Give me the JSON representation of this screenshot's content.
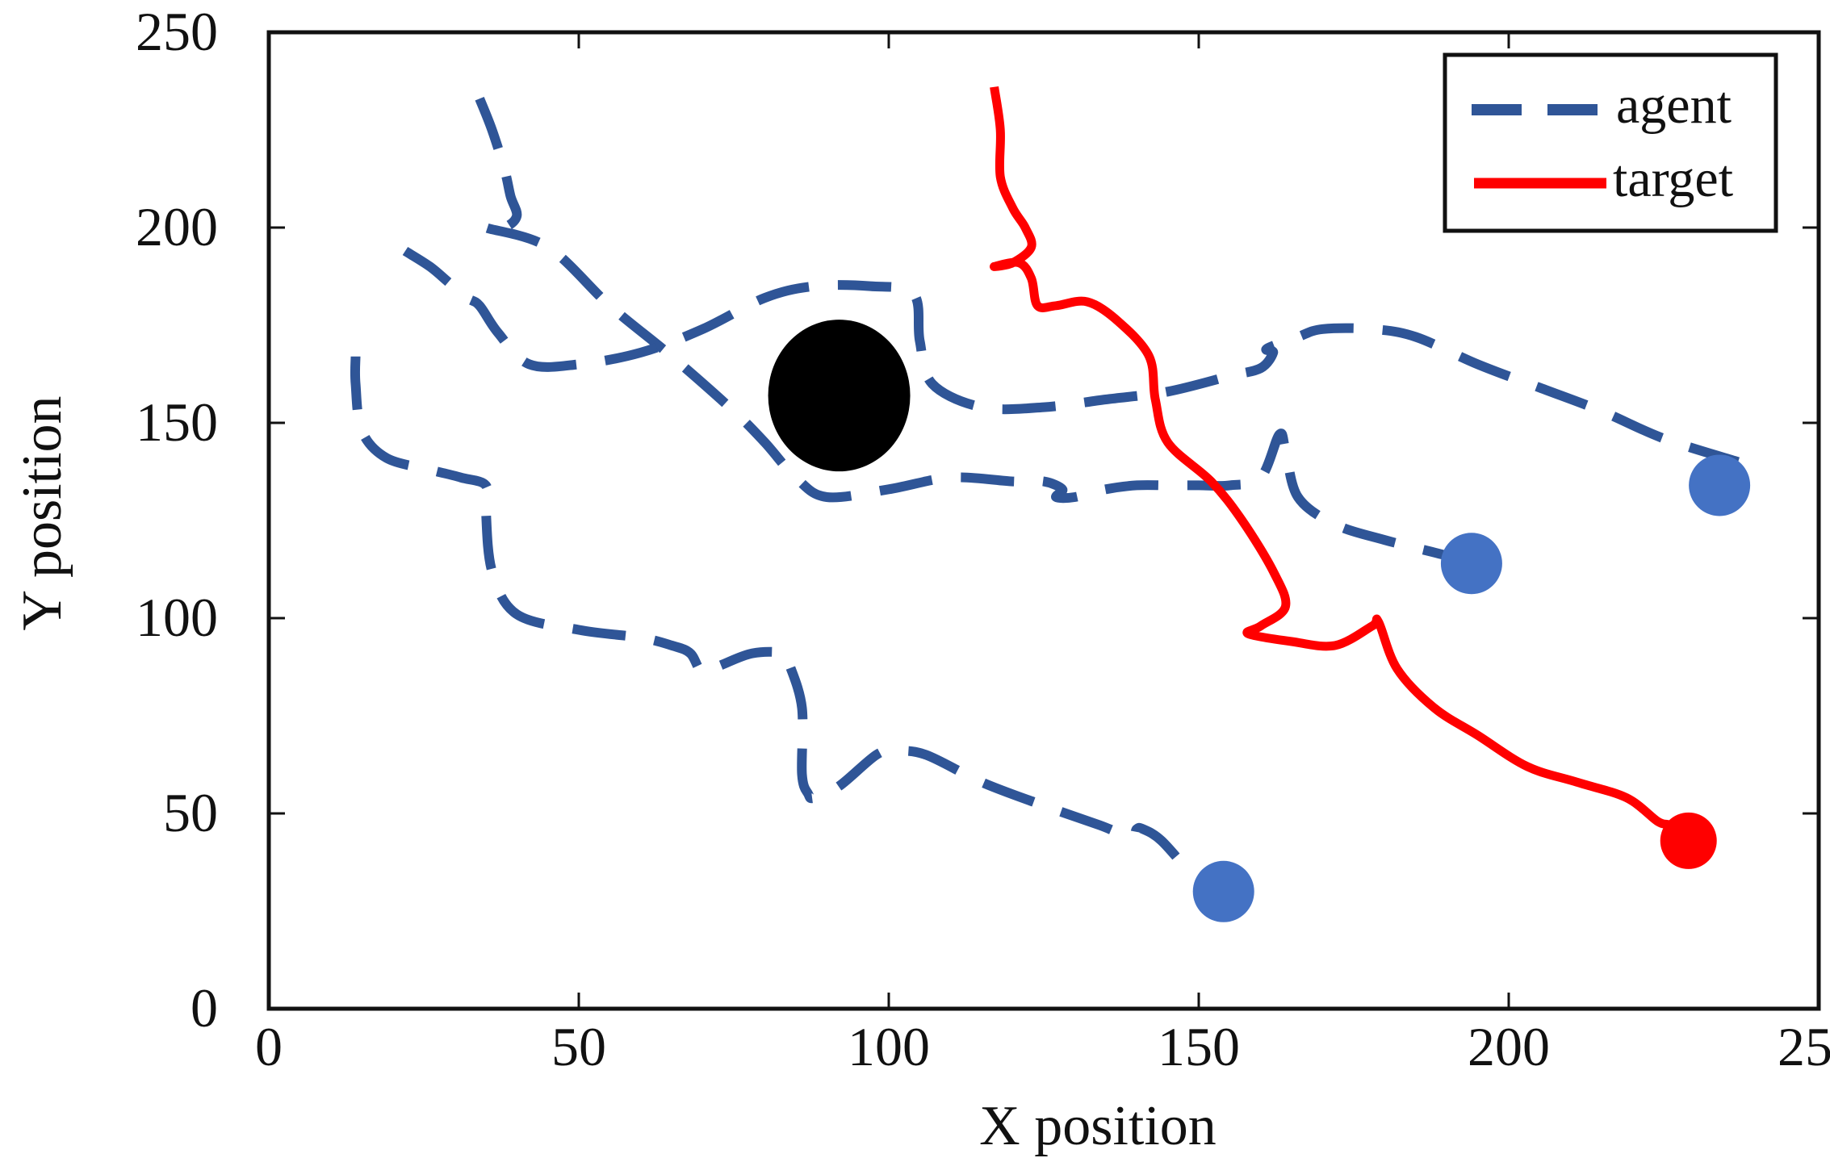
{
  "chart_data": {
    "type": "line",
    "title": "",
    "xlabel": "X position",
    "ylabel": "Y position",
    "xlim": [
      0,
      250
    ],
    "ylim": [
      0,
      250
    ],
    "xticks": [
      0,
      50,
      100,
      150,
      200,
      250
    ],
    "yticks": [
      0,
      50,
      100,
      150,
      200,
      250
    ],
    "grid": false,
    "legend_position": "top-right",
    "legend": [
      {
        "label": "agent",
        "style": "dashed",
        "color": "#2F5597"
      },
      {
        "label": "target",
        "style": "solid",
        "color": "#FF0000"
      }
    ],
    "series": [
      {
        "name": "agent",
        "color": "#2F5597",
        "style": "dashed",
        "paths": [
          {
            "x": [
              34,
              36,
              38,
              39,
              40,
              38,
              35,
              45,
              55,
              65,
              75,
              80,
              85,
              90,
              100,
              110,
              120,
              125,
              128,
              127,
              130,
              135,
              140,
              145,
              150,
              155,
              160,
              163,
              164,
              166,
              172,
              180,
              190,
              196
            ],
            "y": [
              233,
              225,
              215,
              208,
              203,
              200,
              200,
              195,
              180,
              167,
              153,
              145,
              136,
              131,
              133,
              136,
              135,
              135,
              133,
              131,
              131,
              133,
              134,
              134,
              134,
              134,
              136,
              147,
              143,
              131,
              124,
              120,
              116,
              113
            ]
          },
          {
            "x": [
              22,
              26,
              29,
              32,
              34,
              37,
              42,
              50,
              60,
              70,
              80,
              88,
              97,
              104,
              105,
              107,
              115,
              125,
              135,
              145,
              155,
              160,
              162,
              161,
              166,
              170,
              178,
              185,
              195,
              205,
              215,
              225,
              237
            ],
            "y": [
              194,
              190,
              186,
              182,
              180,
              173,
              165,
              165,
              168,
              174,
              182,
              185,
              185,
              183,
              171,
              160,
              154,
              154,
              156,
              158,
              162,
              164,
              168,
              169,
              172,
              174,
              174,
              172,
              165,
              159,
              153,
              146,
              140
            ]
          },
          {
            "x": [
              14,
              14,
              15,
              19,
              26,
              31,
              35,
              35,
              36,
              40,
              50,
              60,
              65,
              68,
              70,
              73,
              78,
              83,
              84,
              86,
              86,
              87,
              88,
              92,
              98,
              101,
              106,
              115,
              125,
              134,
              139,
              140,
              141,
              144,
              149
            ],
            "y": [
              167,
              160,
              148,
              141,
              138,
              136,
              134,
              128,
              112,
              101,
              97,
              95,
              93,
              91,
              86,
              88,
              91,
              91,
              88,
              77,
              60,
              55,
              54,
              57,
              65,
              66,
              65,
              58,
              52,
              47,
              44,
              46,
              46,
              43,
              34
            ]
          }
        ],
        "end_markers": [
          {
            "x": 154,
            "y": 30
          },
          {
            "x": 194,
            "y": 114
          },
          {
            "x": 234,
            "y": 134
          }
        ]
      },
      {
        "name": "target",
        "color": "#FF0000",
        "style": "solid",
        "paths": [
          {
            "x": [
              117,
              118,
              118,
              120,
              122,
              123,
              120,
              117,
              121,
              123,
              124,
              127,
              132,
              137,
              142,
              143,
              145,
              152,
              157,
              162,
              164,
              160,
              158,
              165,
              172,
              178,
              179,
              182,
              188,
              195,
              203,
              211,
              219,
              224,
              226,
              228
            ],
            "y": [
              236,
              225,
              213,
              205,
              200,
              195,
              191,
              190,
              191,
              187,
              180,
              180,
              181,
              176,
              167,
              156,
              145,
              135,
              125,
              112,
              103,
              98,
              96,
              94,
              93,
              98,
              99,
              87,
              77,
              70,
              62,
              58,
              54,
              48,
              47,
              45
            ]
          }
        ],
        "end_markers": [
          {
            "x": 229,
            "y": 43
          }
        ]
      }
    ],
    "obstacles": [
      {
        "x": 92,
        "y": 157,
        "color": "#000000"
      }
    ]
  }
}
